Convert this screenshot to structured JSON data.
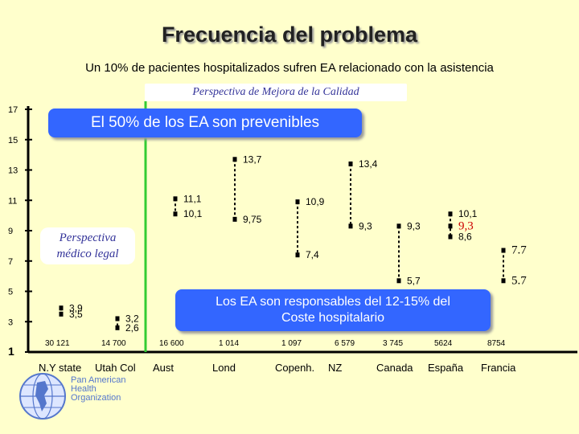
{
  "title": "Frecuencia del problema",
  "subtitle": "Un 10% de pacientes hospitalizados sufren EA relacionado con la asistencia",
  "boxes": {
    "mejora": "Perspectiva de Mejora de la Calidad",
    "prevenibles": "El 50% de los EA son prevenibles",
    "legal_line1": "Perspectiva",
    "legal_line2": "médico legal",
    "coste_line1": "Los EA son responsables del 12-15% del",
    "coste_line2": "Coste hospitalario"
  },
  "logo": {
    "line1": "Pan American",
    "line2": "Health",
    "line3": "Organization",
    "icon": "globe-icon"
  },
  "chart_data": {
    "type": "scatter",
    "ylim": [
      1,
      17
    ],
    "yticks": [
      "1",
      "3",
      "5",
      "7",
      "9",
      "11",
      "13",
      "15",
      "17"
    ],
    "categories": [
      {
        "name": "N.Y state",
        "n": "30 121",
        "values": [
          {
            "label": "3,9",
            "value": 3.9
          },
          {
            "label": "3,5",
            "value": 3.5
          }
        ]
      },
      {
        "name": "Utah Col",
        "n": "14 700",
        "values": [
          {
            "label": "3,2",
            "value": 3.2
          },
          {
            "label": "2,6",
            "value": 2.6
          }
        ]
      },
      {
        "name": "Aust",
        "n": "16 600",
        "values": [
          {
            "label": "11,1",
            "value": 11.1
          },
          {
            "label": "10,1",
            "value": 10.1
          }
        ]
      },
      {
        "name": "Lond",
        "n": "1 014",
        "values": [
          {
            "label": "13,7",
            "value": 13.7
          },
          {
            "label": "9,75",
            "value": 9.75
          }
        ]
      },
      {
        "name": "Copenh.",
        "n": "1 097",
        "values": [
          {
            "label": "10,9",
            "value": 10.9
          },
          {
            "label": "7,4",
            "value": 7.4
          }
        ]
      },
      {
        "name": "NZ",
        "n": "6 579",
        "values": [
          {
            "label": "13,4",
            "value": 13.4
          },
          {
            "label": "9,3",
            "value": 9.3
          }
        ]
      },
      {
        "name": "Canada",
        "n": "3 745",
        "values": [
          {
            "label": "9,3",
            "value": 9.3
          },
          {
            "label": "5,7",
            "value": 5.7
          }
        ]
      },
      {
        "name": "España",
        "n": "5624",
        "values": [
          {
            "label": "10,1",
            "value": 10.1
          },
          {
            "label": "9,3",
            "value": 9.3
          },
          {
            "label": "8,6",
            "value": 8.6
          }
        ]
      },
      {
        "name": "Francia",
        "n": "8754",
        "values": [
          {
            "label": "7.7",
            "value": 7.7
          },
          {
            "label": "5.7",
            "value": 5.7
          }
        ]
      }
    ],
    "colors": {
      "axis": "#000000",
      "divider": "#33cc33",
      "marker": "#000000",
      "highlight": "#cc0000"
    }
  }
}
